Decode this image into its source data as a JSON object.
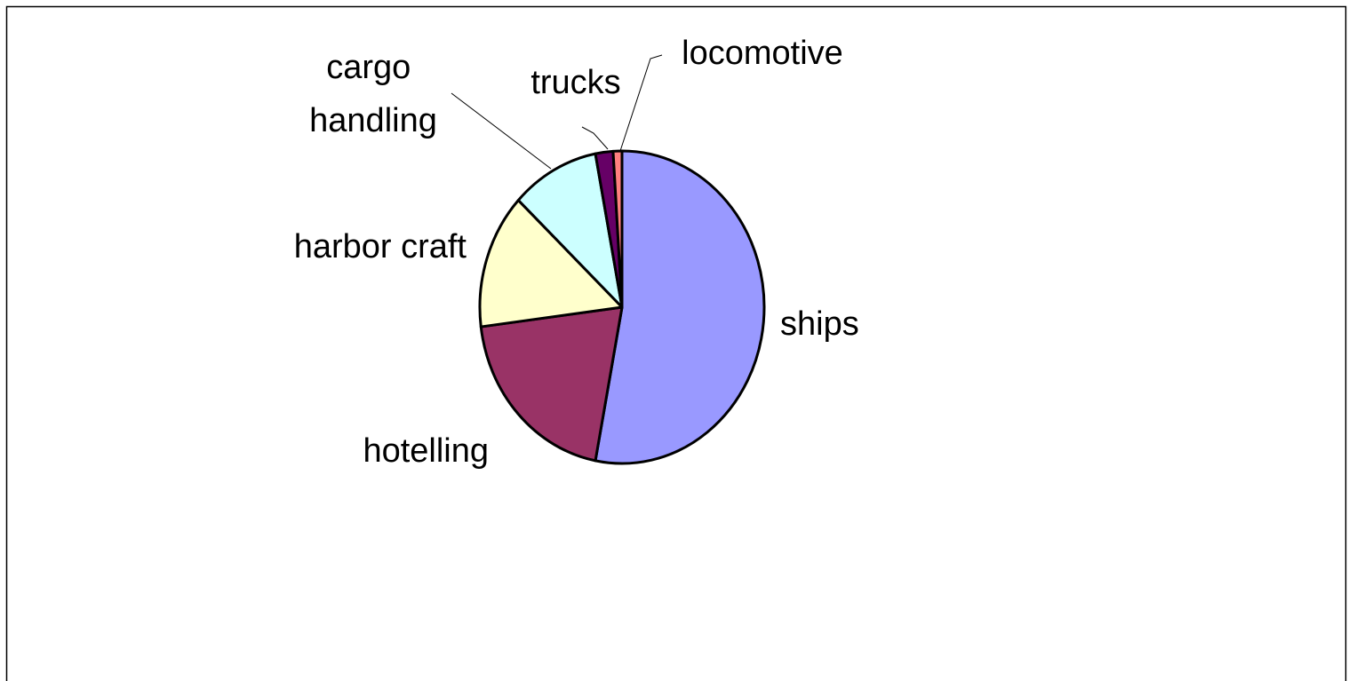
{
  "chart_data": {
    "type": "pie",
    "categories": [
      "ships",
      "hotelling",
      "harbor craft",
      "cargo handling",
      "trucks",
      "locomotive"
    ],
    "values": [
      53,
      20,
      14,
      10,
      2,
      1
    ],
    "colors": [
      "#9999ff",
      "#993366",
      "#ffffcc",
      "#ccffff",
      "#660066",
      "#ff8080"
    ]
  }
}
